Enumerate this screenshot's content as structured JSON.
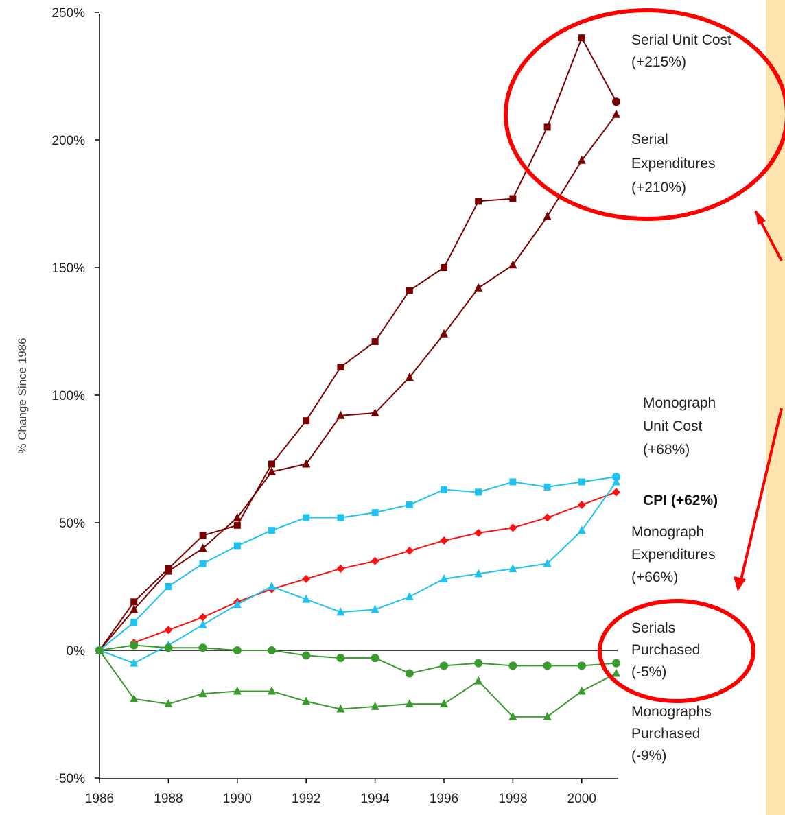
{
  "colors": {
    "background": "#ffffff",
    "side_panel": "#fde3ad",
    "highlight": "#ff0000",
    "serial": "#7b0000",
    "monograph": "#1ec3f2",
    "cpi": "#ff1010",
    "purchased": "#3a9a2e",
    "axis": "#000000"
  },
  "chart_data": {
    "type": "line",
    "ylabel": "% Change Since 1986",
    "xlabel": "",
    "xlim": [
      1986,
      2001
    ],
    "ylim": [
      -50,
      250
    ],
    "x_ticks": [
      1986,
      1988,
      1990,
      1992,
      1994,
      1996,
      1998,
      2000
    ],
    "x_tick_labels": [
      "1986",
      "1988",
      "1990",
      "1992",
      "1994",
      "1996",
      "1998",
      "2000"
    ],
    "y_ticks": [
      -50,
      0,
      50,
      100,
      150,
      200,
      250
    ],
    "y_tick_labels": [
      "-50%",
      "0%",
      "50%",
      "100%",
      "150%",
      "200%",
      "250%"
    ],
    "grid": false,
    "x": [
      1986,
      1987,
      1988,
      1989,
      1990,
      1991,
      1992,
      1993,
      1994,
      1995,
      1996,
      1997,
      1998,
      1999,
      2000,
      2001
    ],
    "series": [
      {
        "color_key": "serial",
        "marker": "square",
        "last_marker": "circle",
        "values": [
          0,
          19,
          32,
          45,
          49,
          73,
          90,
          111,
          121,
          141,
          150,
          176,
          177,
          205,
          240,
          215
        ]
      },
      {
        "color_key": "serial",
        "marker": "triangle",
        "values": [
          0,
          16,
          31,
          40,
          52,
          70,
          73,
          92,
          93,
          107,
          124,
          142,
          151,
          170,
          192,
          210
        ]
      },
      {
        "color_key": "monograph",
        "marker": "square",
        "last_marker": "circle",
        "values": [
          0,
          11,
          25,
          34,
          41,
          47,
          52,
          52,
          54,
          57,
          63,
          62,
          66,
          64,
          66,
          68
        ]
      },
      {
        "color_key": "cpi",
        "marker": "diamond",
        "values": [
          null,
          3,
          8,
          13,
          19,
          24,
          28,
          32,
          35,
          39,
          43,
          46,
          48,
          52,
          57,
          62
        ]
      },
      {
        "color_key": "monograph",
        "marker": "triangle",
        "values": [
          0,
          -5,
          2,
          10,
          18,
          25,
          20,
          15,
          16,
          21,
          28,
          30,
          32,
          34,
          47,
          66
        ]
      },
      {
        "color_key": "purchased",
        "marker": "circle",
        "values": [
          0,
          2,
          1,
          1,
          0,
          0,
          -2,
          -3,
          -3,
          -9,
          -6,
          -5,
          -6,
          -6,
          -6,
          -5
        ]
      },
      {
        "color_key": "purchased",
        "marker": "triangle",
        "values": [
          0,
          -19,
          -21,
          -17,
          -16,
          -16,
          -20,
          -23,
          -22,
          -21,
          -21,
          -12,
          -26,
          -26,
          -16,
          -9
        ]
      }
    ],
    "annotations": [
      {
        "lines": [
          "Serial Unit Cost",
          "(+215%)"
        ],
        "bold": false
      },
      {
        "lines": [
          "Serial",
          "Expenditures",
          "(+210%)"
        ],
        "bold": false
      },
      {
        "lines": [
          "Monograph",
          "Unit Cost",
          "(+68%)"
        ],
        "bold": false
      },
      {
        "lines": [
          "CPI (+62%)"
        ],
        "bold": true
      },
      {
        "lines": [
          "Monograph",
          "Expenditures",
          "(+66%)"
        ],
        "bold": false
      },
      {
        "lines": [
          "Serials",
          "Purchased",
          "(-5%)"
        ],
        "bold": false
      },
      {
        "lines": [
          "Monographs",
          "Purchased",
          "(-9%)"
        ],
        "bold": false
      }
    ]
  }
}
